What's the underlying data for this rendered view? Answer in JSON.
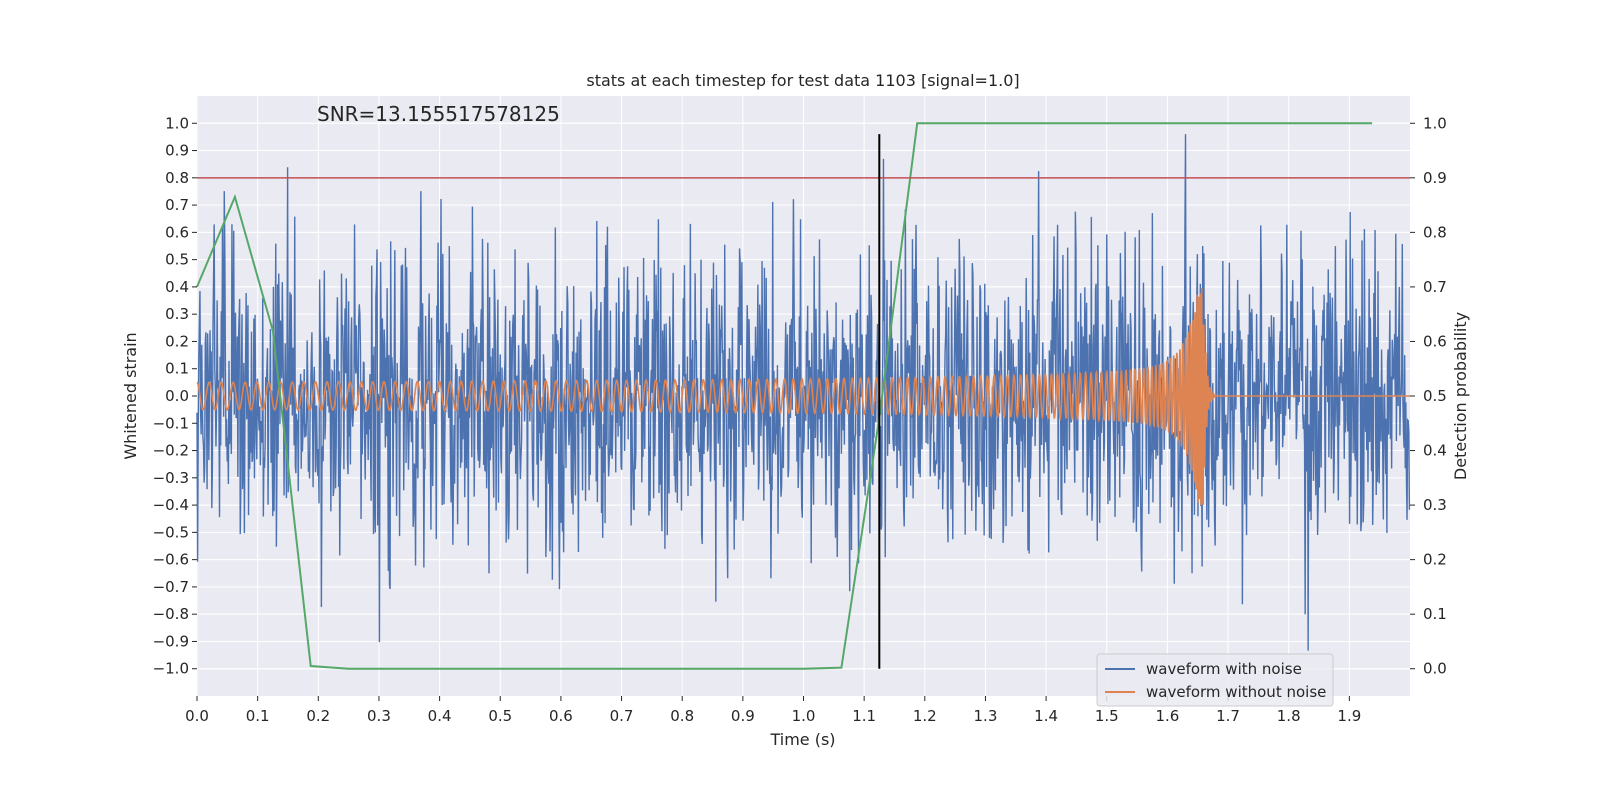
{
  "chart_data": {
    "type": "line",
    "title": "stats at each timestep for test data 1103 [signal=1.0]",
    "xlabel": "Time (s)",
    "ylabel": "Whitened strain",
    "y2label": "Detection probability",
    "annotation": "SNR=13.155517578125",
    "xlim": [
      0.0,
      2.0
    ],
    "ylim": [
      -1.1,
      1.1
    ],
    "y2lim": [
      -0.05,
      1.05
    ],
    "xticks": [
      "0.0",
      "0.1",
      "0.2",
      "0.3",
      "0.4",
      "0.5",
      "0.6",
      "0.7",
      "0.8",
      "0.9",
      "1.0",
      "1.1",
      "1.2",
      "1.3",
      "1.4",
      "1.5",
      "1.6",
      "1.7",
      "1.8",
      "1.9"
    ],
    "yticks": [
      "1.0",
      "0.9",
      "0.8",
      "0.7",
      "0.6",
      "0.5",
      "0.4",
      "0.3",
      "0.2",
      "0.1",
      "0.0",
      "−0.1",
      "−0.2",
      "−0.3",
      "−0.4",
      "−0.5",
      "−0.6",
      "−0.7",
      "−0.8",
      "−0.9",
      "−1.0"
    ],
    "y2ticks": [
      "1.0",
      "0.9",
      "0.8",
      "0.7",
      "0.6",
      "0.5",
      "0.4",
      "0.3",
      "0.2",
      "0.1",
      "0.0"
    ],
    "grid": true,
    "legend_position": "lower-right",
    "series": [
      {
        "name": "waveform with noise",
        "color": "#4c72b0",
        "axis": "left",
        "description": "noisy whitened strain, amplitude roughly between -1.0 and 0.96"
      },
      {
        "name": "waveform without noise",
        "color": "#dd8452",
        "axis": "left",
        "chirp": {
          "start_amplitude": 0.05,
          "peak_amplitude": 0.4,
          "merger_time": 1.66,
          "ringdown_end": 1.68,
          "final_value": 0.0
        }
      },
      {
        "name": "",
        "color": "#55a868",
        "axis": "right",
        "x": [
          0.0,
          0.0625,
          0.125,
          0.1875,
          0.25,
          0.3125,
          0.375,
          0.4375,
          0.5,
          0.5625,
          0.625,
          0.6875,
          0.75,
          0.8125,
          0.875,
          0.9375,
          1.0,
          1.0625,
          1.125,
          1.1875,
          1.25,
          1.3125,
          1.375,
          1.4375,
          1.5,
          1.5625,
          1.625,
          1.6875,
          1.75,
          1.8125,
          1.875,
          1.9375
        ],
        "y": [
          0.7,
          0.865,
          0.62,
          0.005,
          0.0,
          0.0,
          0.0,
          0.0,
          0.0,
          0.0,
          0.0,
          0.0,
          0.0,
          0.0,
          0.0,
          0.0,
          0.0,
          0.002,
          0.46,
          1.0,
          1.0,
          1.0,
          1.0,
          1.0,
          1.0,
          1.0,
          1.0,
          1.0,
          1.0,
          1.0,
          1.0,
          1.0
        ]
      }
    ],
    "threshold_line": {
      "y2": 0.9,
      "color": "#c44e52"
    },
    "vertical_marker": {
      "x": 1.125,
      "color": "#000000",
      "y_range": [
        -1.0,
        0.96
      ]
    }
  }
}
